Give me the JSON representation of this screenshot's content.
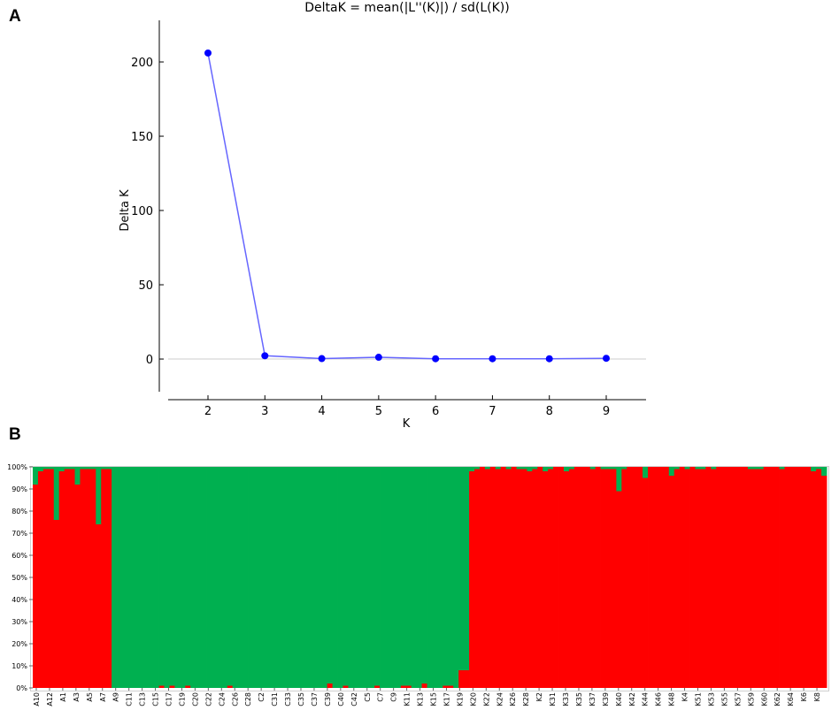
{
  "panels": {
    "a": "A",
    "b": "B"
  },
  "chart_data": [
    {
      "type": "line",
      "title": "DeltaK = mean(|L''(K)|) / sd(L(K))",
      "xlabel": "K",
      "ylabel": "Delta K",
      "x": [
        2,
        3,
        4,
        5,
        6,
        7,
        8,
        9
      ],
      "y": [
        206,
        2.2,
        0.3,
        1.2,
        0.2,
        0.2,
        0.2,
        0.5
      ],
      "xticks": [
        "2",
        "3",
        "4",
        "5",
        "6",
        "7",
        "8",
        "9"
      ],
      "yticks": [
        "0",
        "50",
        "100",
        "150",
        "200"
      ],
      "ylim": [
        -22,
        228
      ],
      "xlim": [
        1.3,
        9.7
      ],
      "series_color": "#0000ff",
      "line_color": "#6666ff",
      "zero_line_color": "#cccccc"
    },
    {
      "type": "bar",
      "stacked": true,
      "yticks": [
        "0%",
        "10%",
        "20%",
        "30%",
        "40%",
        "50%",
        "60%",
        "70%",
        "80%",
        "90%",
        "100%"
      ],
      "ylim": [
        0,
        100
      ],
      "xticks": [
        "A10",
        "A12",
        "A1",
        "A3",
        "A5",
        "A7",
        "A9",
        "C11",
        "C13",
        "C15",
        "C17",
        "C19",
        "C20",
        "C22",
        "C24",
        "C26",
        "C28",
        "C2",
        "C31",
        "C33",
        "C35",
        "C37",
        "C39",
        "C40",
        "C42",
        "C5",
        "C7",
        "C9",
        "K11",
        "K13",
        "K15",
        "K17",
        "K19",
        "K20",
        "K22",
        "K24",
        "K26",
        "K28",
        "K2",
        "K31",
        "K33",
        "K35",
        "K37",
        "K39",
        "K40",
        "K42",
        "K44",
        "K46",
        "K48",
        "K4",
        "K51",
        "K53",
        "K55",
        "K57",
        "K59",
        "K60",
        "K62",
        "K64",
        "K6",
        "K8"
      ],
      "cluster_colors": [
        "#ff0000",
        "#00b050"
      ],
      "red_percent": [
        92,
        98,
        99,
        99,
        76,
        98,
        99,
        99,
        92,
        99,
        99,
        99,
        74,
        99,
        99,
        0,
        0,
        0,
        0,
        0,
        0,
        0,
        0,
        0,
        1,
        0,
        1,
        0,
        0,
        1,
        0,
        0,
        0,
        0,
        0,
        0,
        0,
        1,
        0,
        0,
        0,
        0,
        0,
        0,
        0,
        0,
        0,
        0,
        0,
        0,
        0,
        0,
        0,
        0,
        0,
        0,
        2,
        0,
        0,
        1,
        0,
        0,
        0,
        0,
        0,
        1,
        0,
        0,
        0,
        0,
        1,
        1,
        0,
        0,
        2,
        0,
        0,
        0,
        1,
        1,
        0,
        8,
        8,
        98,
        99,
        100,
        99,
        100,
        99,
        100,
        99,
        100,
        99,
        99,
        98,
        99,
        100,
        98,
        99,
        100,
        100,
        98,
        99,
        100,
        100,
        100,
        99,
        100,
        99,
        99,
        99,
        89,
        99,
        100,
        100,
        100,
        95,
        100,
        100,
        100,
        100,
        96,
        99,
        100,
        99,
        100,
        99,
        99,
        100,
        99,
        100,
        100,
        100,
        100,
        100,
        100,
        99,
        99,
        99,
        100,
        100,
        100,
        99,
        100,
        100,
        100,
        100,
        100,
        98,
        99,
        96
      ]
    }
  ]
}
